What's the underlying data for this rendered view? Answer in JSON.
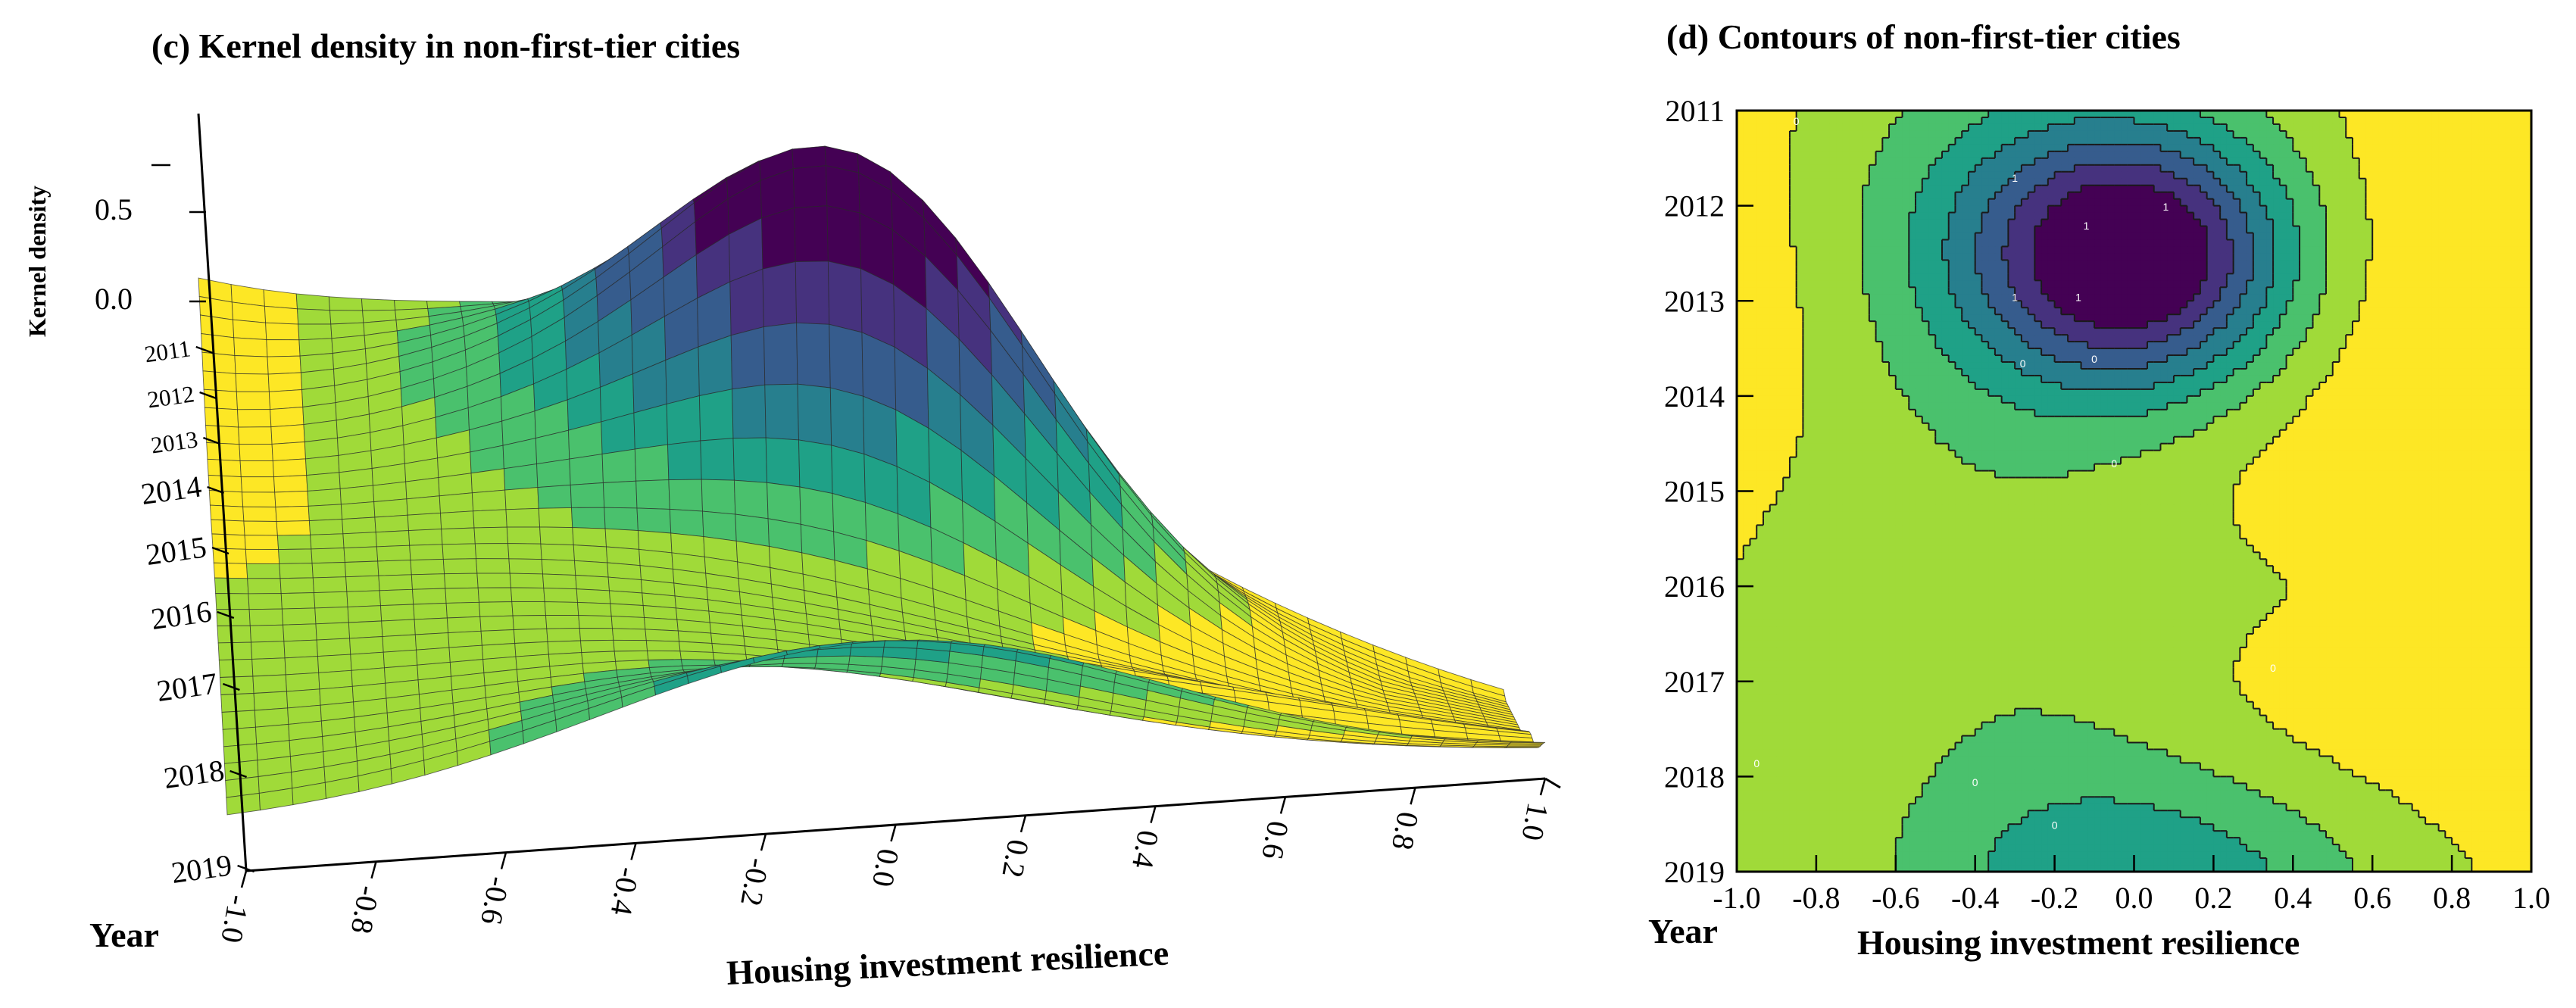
{
  "colors": {
    "c_0": "#440154",
    "c_1": "#46327e",
    "c_2": "#365c8d",
    "c_3": "#277f8e",
    "c_4": "#1fa187",
    "c_5": "#4ac16d",
    "c_6": "#a0da39",
    "c_7": "#fde725",
    "contour_line": "#1a1a1a",
    "contour_label": "#ffffff"
  },
  "chart_data": [
    {
      "type": "surface3d",
      "title": "(c) Kernel density in non-first-tier cities",
      "xlabel": "Housing investment resilience",
      "ylabel": "Year",
      "zlabel": "Kernel density",
      "x_ticks": [
        "-1.0",
        "-0.8",
        "-0.6",
        "-0.4",
        "-0.2",
        "0.0",
        "0.2",
        "0.4",
        "0.6",
        "0.8",
        "1.0"
      ],
      "y_ticks": [
        "2011",
        "2012",
        "2013",
        "2014",
        "2015",
        "2016",
        "2017",
        "2018",
        "2019"
      ],
      "z_ticks": [
        "0.5",
        "0.0"
      ],
      "x_range": [
        -1.0,
        1.0
      ],
      "y_range": [
        2011,
        2019
      ]
    },
    {
      "type": "contour",
      "title": "(d) Contours of  non-first-tier cities",
      "xlabel": "Housing investment resilience",
      "ylabel": "Year",
      "x_ticks": [
        "-1.0",
        "-0.8",
        "-0.6",
        "-0.4",
        "-0.2",
        "0.0",
        "0.2",
        "0.4",
        "0.6",
        "0.8",
        "1.0"
      ],
      "y_ticks": [
        "2011",
        "2012",
        "2013",
        "2014",
        "2015",
        "2016",
        "2017",
        "2018",
        "2019"
      ],
      "x_range": [
        -1.0,
        1.0
      ],
      "y_range": [
        2011,
        2019
      ],
      "contour_labels": [
        {
          "x": -0.85,
          "y": 2011.15,
          "text": "0"
        },
        {
          "x": -0.3,
          "y": 2011.75,
          "text": "1"
        },
        {
          "x": -0.12,
          "y": 2012.25,
          "text": "1"
        },
        {
          "x": 0.08,
          "y": 2012.05,
          "text": "1"
        },
        {
          "x": -0.3,
          "y": 2013.0,
          "text": "1"
        },
        {
          "x": -0.14,
          "y": 2013.0,
          "text": "1"
        },
        {
          "x": -0.28,
          "y": 2013.7,
          "text": "0"
        },
        {
          "x": -0.1,
          "y": 2013.65,
          "text": "0"
        },
        {
          "x": -0.05,
          "y": 2014.75,
          "text": "0"
        },
        {
          "x": 0.35,
          "y": 2016.9,
          "text": "0"
        },
        {
          "x": -0.95,
          "y": 2017.9,
          "text": "0"
        },
        {
          "x": -0.4,
          "y": 2018.1,
          "text": "0"
        },
        {
          "x": -0.2,
          "y": 2018.55,
          "text": "0"
        }
      ]
    }
  ]
}
